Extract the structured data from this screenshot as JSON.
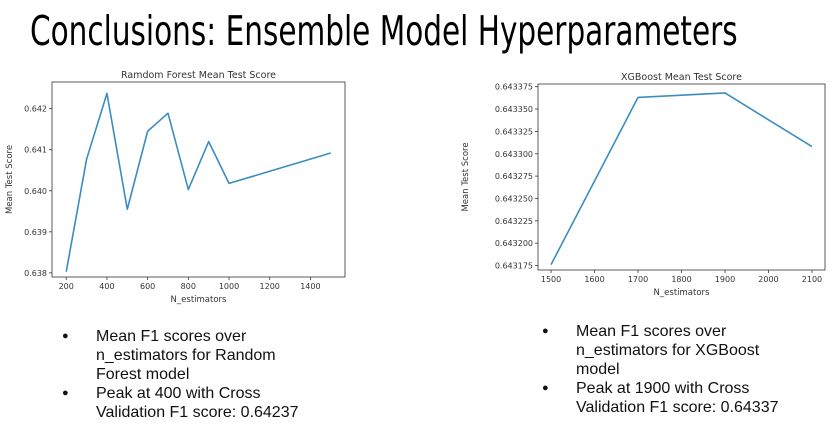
{
  "slide": {
    "title": "Conclusions: Ensemble Model Hyperparameters"
  },
  "chart_data": [
    {
      "type": "line",
      "title": "Ramdom Forest Mean Test Score",
      "xlabel": "N_estimators",
      "ylabel": "Mean Test Score",
      "x": [
        200,
        300,
        400,
        500,
        600,
        700,
        800,
        900,
        1000,
        1500
      ],
      "values": [
        0.63803,
        0.64077,
        0.64237,
        0.63955,
        0.64145,
        0.64189,
        0.64003,
        0.6412,
        0.64018,
        0.64092
      ],
      "xlim": [
        130,
        1570
      ],
      "ylim": [
        0.6379,
        0.64265
      ],
      "xticks": [
        200,
        400,
        600,
        800,
        1000,
        1200,
        1400
      ],
      "xtick_labels": [
        "200",
        "400",
        "600",
        "800",
        "1000",
        "1200",
        "1400"
      ],
      "yticks": [
        0.638,
        0.639,
        0.64,
        0.641,
        0.642
      ],
      "ytick_labels": [
        "0.638",
        "0.639",
        "0.640",
        "0.641",
        "0.642"
      ],
      "color": "#3b8dc0",
      "grid": false
    },
    {
      "type": "line",
      "title": "XGBoost Mean Test Score",
      "xlabel": "N_estimators",
      "ylabel": "Mean Test Score",
      "x": [
        1500,
        1700,
        1900,
        2100
      ],
      "values": [
        0.643176,
        0.643363,
        0.643368,
        0.643308
      ],
      "xlim": [
        1470,
        2130
      ],
      "ylim": [
        0.64317,
        0.643378
      ],
      "xticks": [
        1500,
        1600,
        1700,
        1800,
        1900,
        2000,
        2100
      ],
      "xtick_labels": [
        "1500",
        "1600",
        "1700",
        "1800",
        "1900",
        "2000",
        "2100"
      ],
      "yticks": [
        0.643175,
        0.6432,
        0.643225,
        0.64325,
        0.643275,
        0.6433,
        0.643325,
        0.64335,
        0.643375
      ],
      "ytick_labels": [
        "0.643175",
        "0.643200",
        "0.643225",
        "0.643250",
        "0.643275",
        "0.643300",
        "0.643325",
        "0.643350",
        "0.643375"
      ],
      "color": "#3b8dc0",
      "grid": false
    }
  ],
  "bullets_rf": [
    {
      "lines": [
        "Mean F1 scores over",
        "n_estimators for Random",
        "Forest model"
      ]
    },
    {
      "lines": [
        "Peak at 400 with Cross",
        "Validation F1 score: 0.64237"
      ]
    }
  ],
  "bullets_xgb": [
    {
      "lines": [
        "Mean F1 scores over",
        "n_estimators for XGBoost",
        "model"
      ]
    },
    {
      "lines": [
        "Peak at 1900 with Cross",
        "Validation F1 score: 0.64337"
      ]
    }
  ]
}
